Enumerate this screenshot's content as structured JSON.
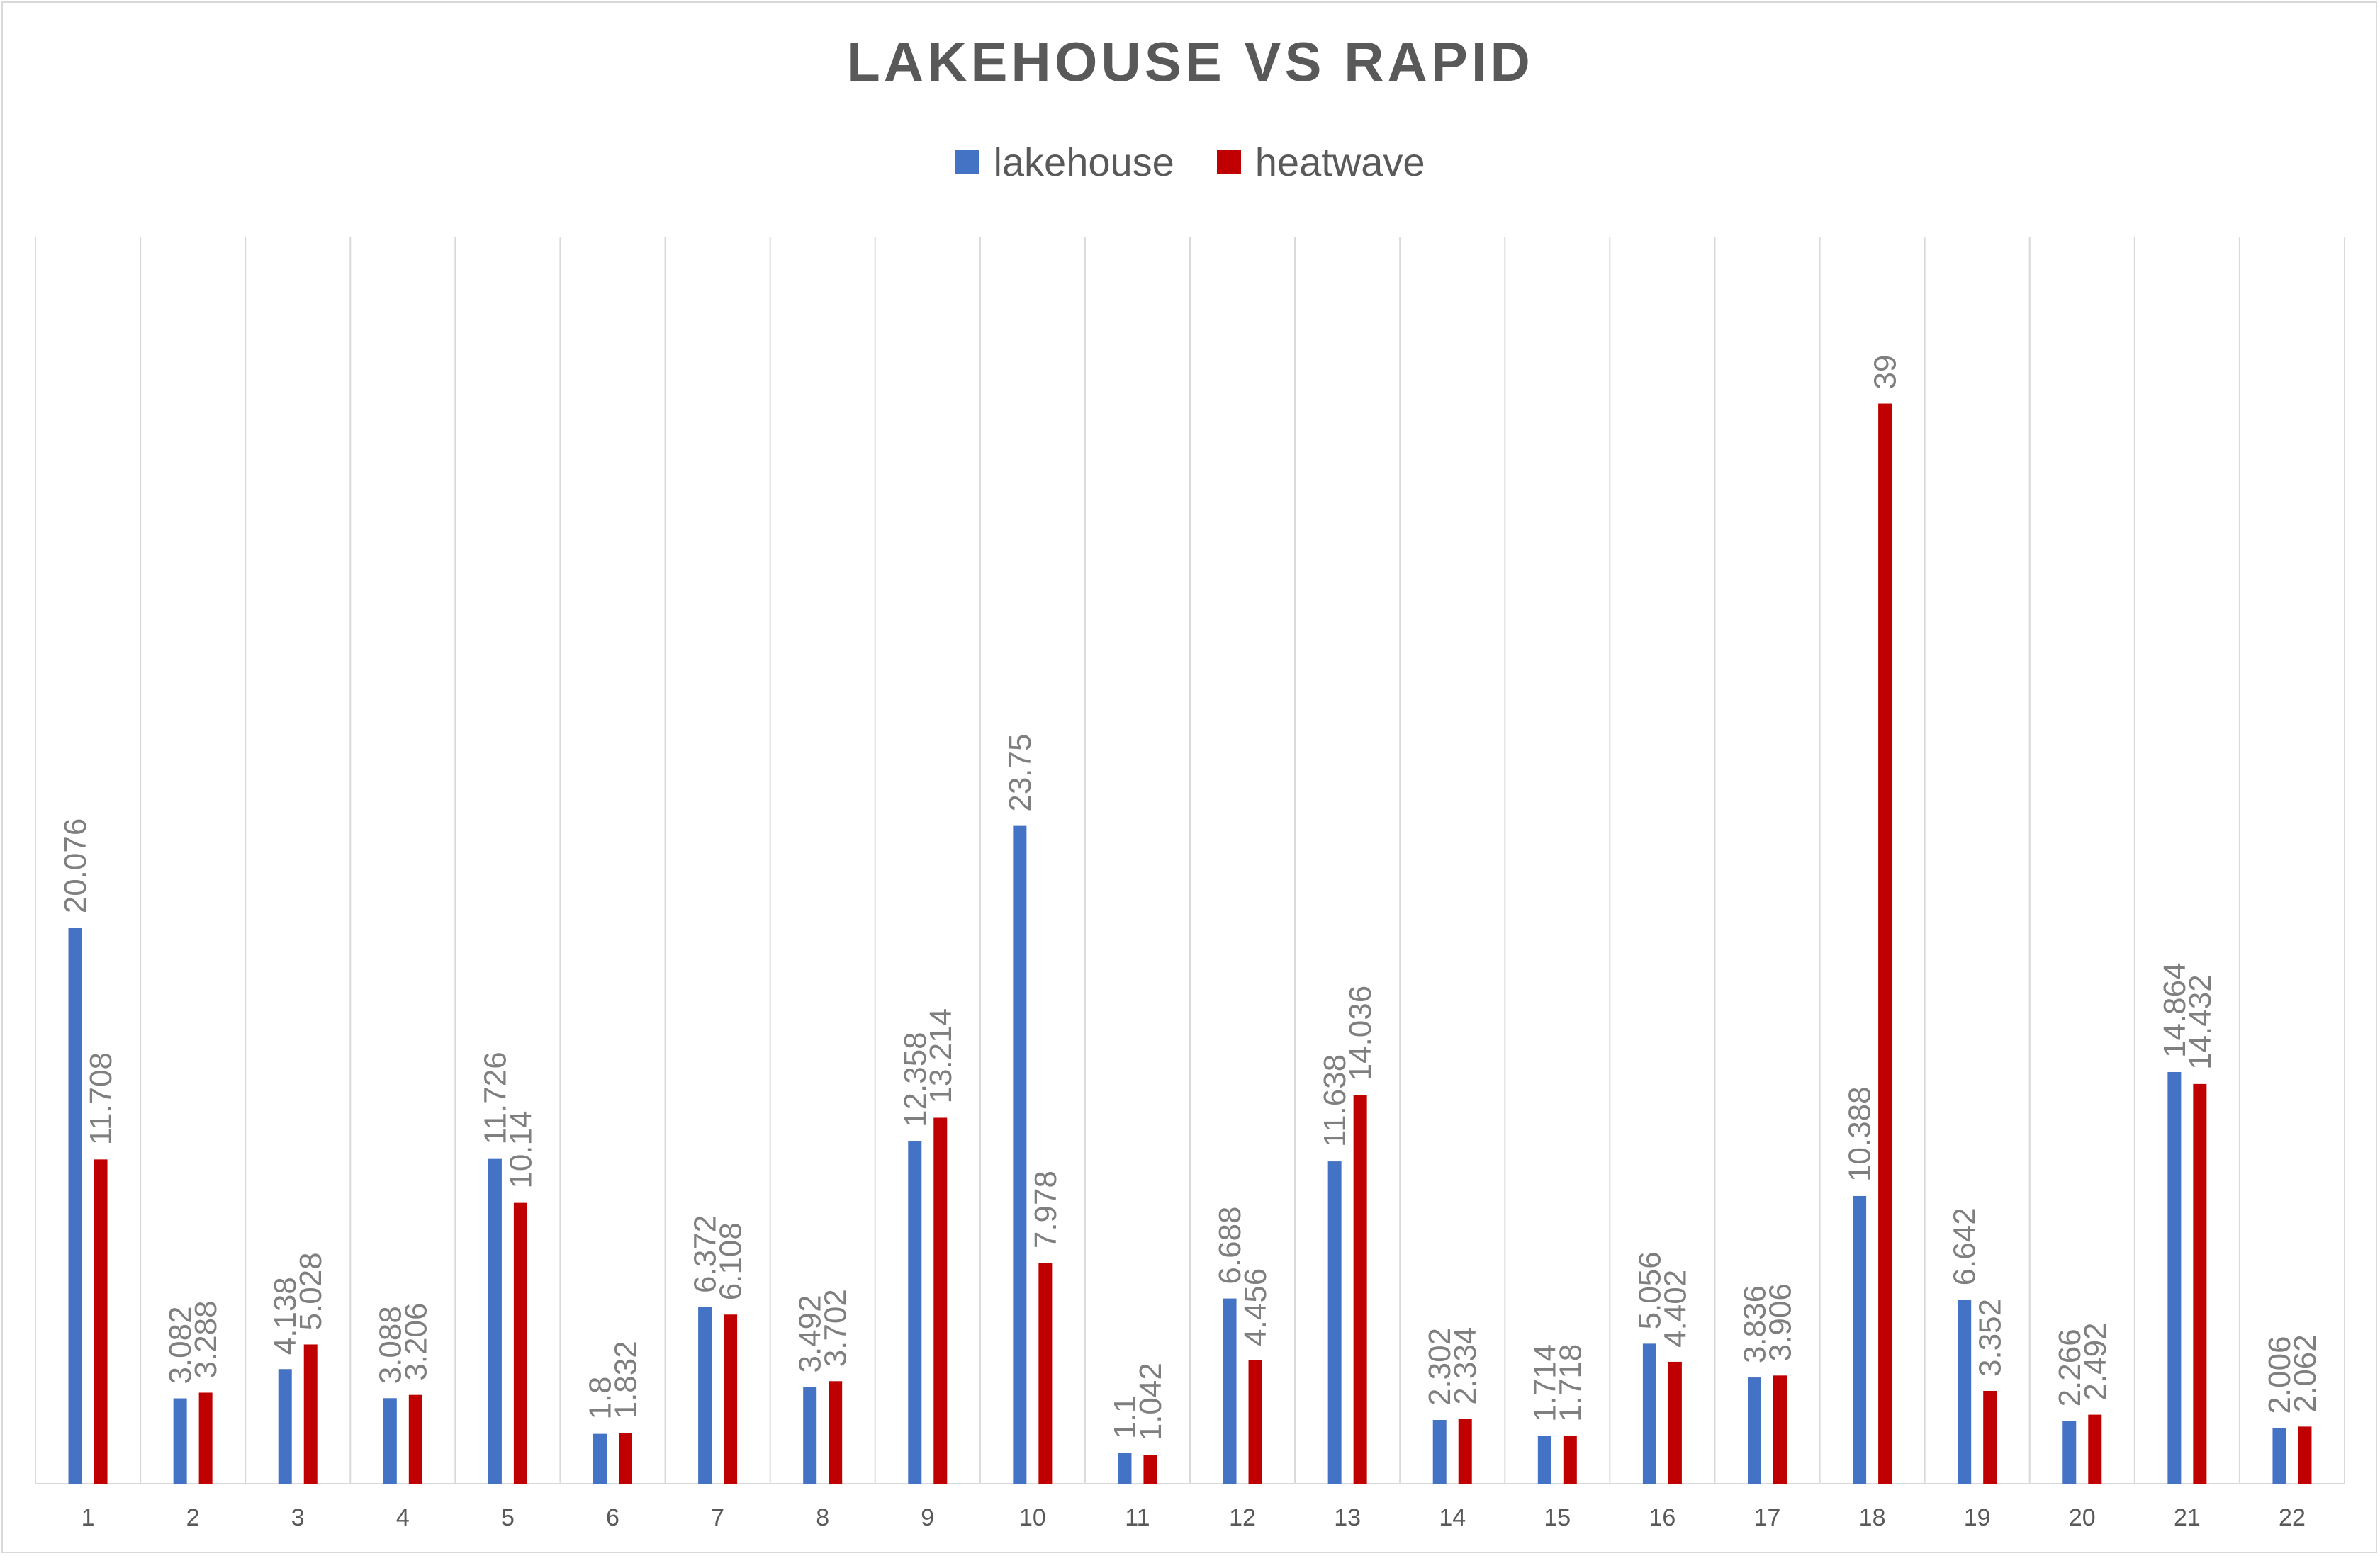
{
  "chart_data": {
    "type": "bar",
    "title": "LAKEHOUSE VS RAPID",
    "xlabel": "",
    "ylabel": "",
    "categories": [
      "1",
      "2",
      "3",
      "4",
      "5",
      "6",
      "7",
      "8",
      "9",
      "10",
      "11",
      "12",
      "13",
      "14",
      "15",
      "16",
      "17",
      "18",
      "19",
      "20",
      "21",
      "22"
    ],
    "series": [
      {
        "name": "lakehouse",
        "color": "#4472c4",
        "values": [
          20.076,
          3.082,
          4.138,
          3.088,
          11.726,
          1.8,
          6.372,
          3.492,
          12.358,
          23.75,
          1.1,
          6.688,
          11.638,
          2.302,
          1.714,
          5.056,
          3.836,
          10.388,
          6.642,
          2.266,
          14.864,
          2.006
        ],
        "labels": [
          "20.076",
          "3.082",
          "4.138",
          "3.088",
          "11.726",
          "1.8",
          "6.372",
          "3.492",
          "12.358",
          "23.75",
          "1.1",
          "6.688",
          "11.638",
          "2.302",
          "1.714",
          "5.056",
          "3.836",
          "10.388",
          "6.642",
          "2.266",
          "14.864",
          "2.006"
        ]
      },
      {
        "name": "heatwave",
        "color": "#c00000",
        "values": [
          11.708,
          3.288,
          5.028,
          3.206,
          10.14,
          1.832,
          6.108,
          3.702,
          13.214,
          7.978,
          1.042,
          4.456,
          14.036,
          2.334,
          1.718,
          4.402,
          3.906,
          39,
          3.352,
          2.492,
          14.432,
          2.062
        ],
        "labels": [
          "11.708",
          "3.288",
          "5.028",
          "3.206",
          "10.14",
          "1.832",
          "6.108",
          "3.702",
          "13.214",
          "7.978",
          "1.042",
          "4.456",
          "14.036",
          "2.334",
          "1.718",
          "4.402",
          "3.906",
          "39",
          "3.352",
          "2.492",
          "14.432",
          "2.062"
        ]
      }
    ],
    "ylim": [
      0,
      45
    ],
    "grid": "vertical",
    "legend_position": "top",
    "y_axis_shown": false
  }
}
